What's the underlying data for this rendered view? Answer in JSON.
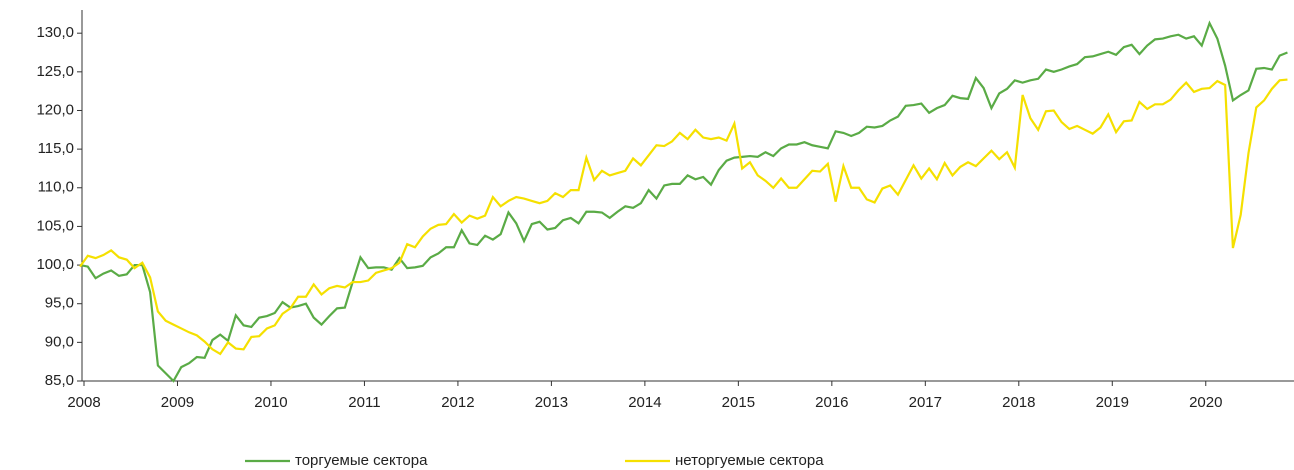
{
  "chart_data": {
    "type": "line",
    "categories": [
      "2008",
      null,
      null,
      null,
      null,
      null,
      null,
      null,
      null,
      null,
      null,
      null,
      "2009",
      null,
      null,
      null,
      null,
      null,
      null,
      null,
      null,
      null,
      null,
      null,
      "2010",
      null,
      null,
      null,
      null,
      null,
      null,
      null,
      null,
      null,
      null,
      null,
      "2011",
      null,
      null,
      null,
      null,
      null,
      null,
      null,
      null,
      null,
      null,
      null,
      "2012",
      null,
      null,
      null,
      null,
      null,
      null,
      null,
      null,
      null,
      null,
      null,
      "2013",
      null,
      null,
      null,
      null,
      null,
      null,
      null,
      null,
      null,
      null,
      null,
      "2014",
      null,
      null,
      null,
      null,
      null,
      null,
      null,
      null,
      null,
      null,
      null,
      "2015",
      null,
      null,
      null,
      null,
      null,
      null,
      null,
      null,
      null,
      null,
      null,
      "2016",
      null,
      null,
      null,
      null,
      null,
      null,
      null,
      null,
      null,
      null,
      null,
      "2017",
      null,
      null,
      null,
      null,
      null,
      null,
      null,
      null,
      null,
      null,
      null,
      "2018",
      null,
      null,
      null,
      null,
      null,
      null,
      null,
      null,
      null,
      null,
      null,
      "2019",
      null,
      null,
      null,
      null,
      null,
      null,
      null,
      null,
      null,
      null,
      null,
      "2020",
      null,
      null,
      null,
      null,
      null,
      null,
      null,
      null,
      null,
      null,
      null
    ],
    "series": [
      {
        "name": "торгуемые сектора",
        "color": "#5aab46",
        "values": [
          100,
          99.8,
          98.3,
          98.9,
          99.3,
          98.6,
          98.8,
          100,
          100,
          96.5,
          87,
          86,
          85,
          86.8,
          87.3,
          88.1,
          88,
          90.3,
          91,
          90.2,
          93.5,
          92.2,
          92,
          93.2,
          93.4,
          93.8,
          95.2,
          94.5,
          94.7,
          95,
          93.2,
          92.3,
          93.4,
          94.4,
          94.5,
          97.8,
          101,
          99.6,
          99.7,
          99.7,
          99.4,
          100.9,
          99.6,
          99.7,
          99.9,
          101,
          101.5,
          102.3,
          102.3,
          104.5,
          102.8,
          102.6,
          103.8,
          103.3,
          104,
          106.8,
          105.4,
          103.1,
          105.3,
          105.6,
          104.6,
          104.8,
          105.8,
          106.1,
          105.4,
          106.9,
          106.9,
          106.8,
          106.1,
          106.9,
          107.6,
          107.4,
          108,
          109.7,
          108.6,
          110.3,
          110.5,
          110.5,
          111.6,
          111.1,
          111.4,
          110.4,
          112.3,
          113.5,
          113.9,
          114,
          114.1,
          114,
          114.6,
          114.1,
          115.1,
          115.6,
          115.6,
          115.9,
          115.5,
          115.3,
          115.1,
          117.3,
          117.1,
          116.7,
          117.1,
          117.9,
          117.8,
          118,
          118.7,
          119.2,
          120.6,
          120.7,
          120.9,
          119.7,
          120.3,
          120.7,
          121.9,
          121.6,
          121.5,
          124.2,
          122.9,
          120.3,
          122.2,
          122.8,
          123.9,
          123.6,
          123.9,
          124.1,
          125.3,
          125,
          125.3,
          125.7,
          126,
          126.9,
          127,
          127.3,
          127.6,
          127.2,
          128.2,
          128.5,
          127.3,
          128.4,
          129.2,
          129.3,
          129.6,
          129.8,
          129.3,
          129.6,
          128.4,
          131.3,
          129.3,
          125.8,
          121.3,
          122,
          122.6,
          125.4,
          125.5,
          125.3,
          127.1,
          127.5
        ]
      },
      {
        "name": "неторгуемые сектора",
        "color": "#f5e000",
        "values": [
          99.8,
          101.2,
          100.9,
          101.3,
          101.9,
          101,
          100.7,
          99.6,
          100.3,
          98.4,
          94,
          92.8,
          92.3,
          91.8,
          91.3,
          90.9,
          90.1,
          89.1,
          88.5,
          90,
          89.2,
          89.1,
          90.7,
          90.8,
          91.8,
          92.2,
          93.7,
          94.4,
          95.9,
          95.9,
          97.5,
          96.2,
          97,
          97.3,
          97.1,
          97.8,
          97.8,
          98,
          99,
          99.3,
          99.6,
          100.3,
          102.7,
          102.3,
          103.7,
          104.7,
          105.2,
          105.3,
          106.6,
          105.5,
          106.4,
          106,
          106.4,
          108.8,
          107.6,
          108.3,
          108.8,
          108.6,
          108.3,
          108,
          108.3,
          109.3,
          108.8,
          109.7,
          109.7,
          113.9,
          111,
          112.2,
          111.6,
          111.9,
          112.2,
          113.8,
          112.9,
          114.2,
          115.5,
          115.4,
          116,
          117.1,
          116.3,
          117.5,
          116.5,
          116.3,
          116.5,
          116.1,
          118.3,
          112.5,
          113.3,
          111.6,
          110.9,
          110,
          111.2,
          110,
          110,
          111.1,
          112.2,
          112.1,
          113.1,
          108.2,
          112.8,
          110,
          110,
          108.5,
          108.1,
          109.9,
          110.3,
          109.1,
          111,
          112.9,
          111.2,
          112.5,
          111.1,
          113.2,
          111.6,
          112.7,
          113.3,
          112.8,
          113.8,
          114.8,
          113.7,
          114.6,
          112.6,
          122,
          119,
          117.5,
          119.9,
          120,
          118.5,
          117.6,
          118,
          117.5,
          117,
          117.8,
          119.5,
          117.2,
          118.6,
          118.7,
          121.1,
          120.2,
          120.8,
          120.8,
          121.4,
          122.6,
          123.6,
          122.4,
          122.8,
          122.9,
          123.8,
          123.3,
          102.2,
          106.5,
          114.5,
          120.4,
          121.3,
          122.8,
          123.9,
          124
        ]
      }
    ],
    "ylim": [
      85,
      133
    ],
    "yticks": [
      {
        "value": 85,
        "label": "85,0"
      },
      {
        "value": 90,
        "label": "90,0"
      },
      {
        "value": 95,
        "label": "95,0"
      },
      {
        "value": 100,
        "label": "100,0"
      },
      {
        "value": 105,
        "label": "105,0"
      },
      {
        "value": 110,
        "label": "110,0"
      },
      {
        "value": 115,
        "label": "115,0"
      },
      {
        "value": 120,
        "label": "120,0"
      },
      {
        "value": 125,
        "label": "125,0"
      },
      {
        "value": 130,
        "label": "130,0"
      }
    ],
    "legend": "bottom"
  }
}
